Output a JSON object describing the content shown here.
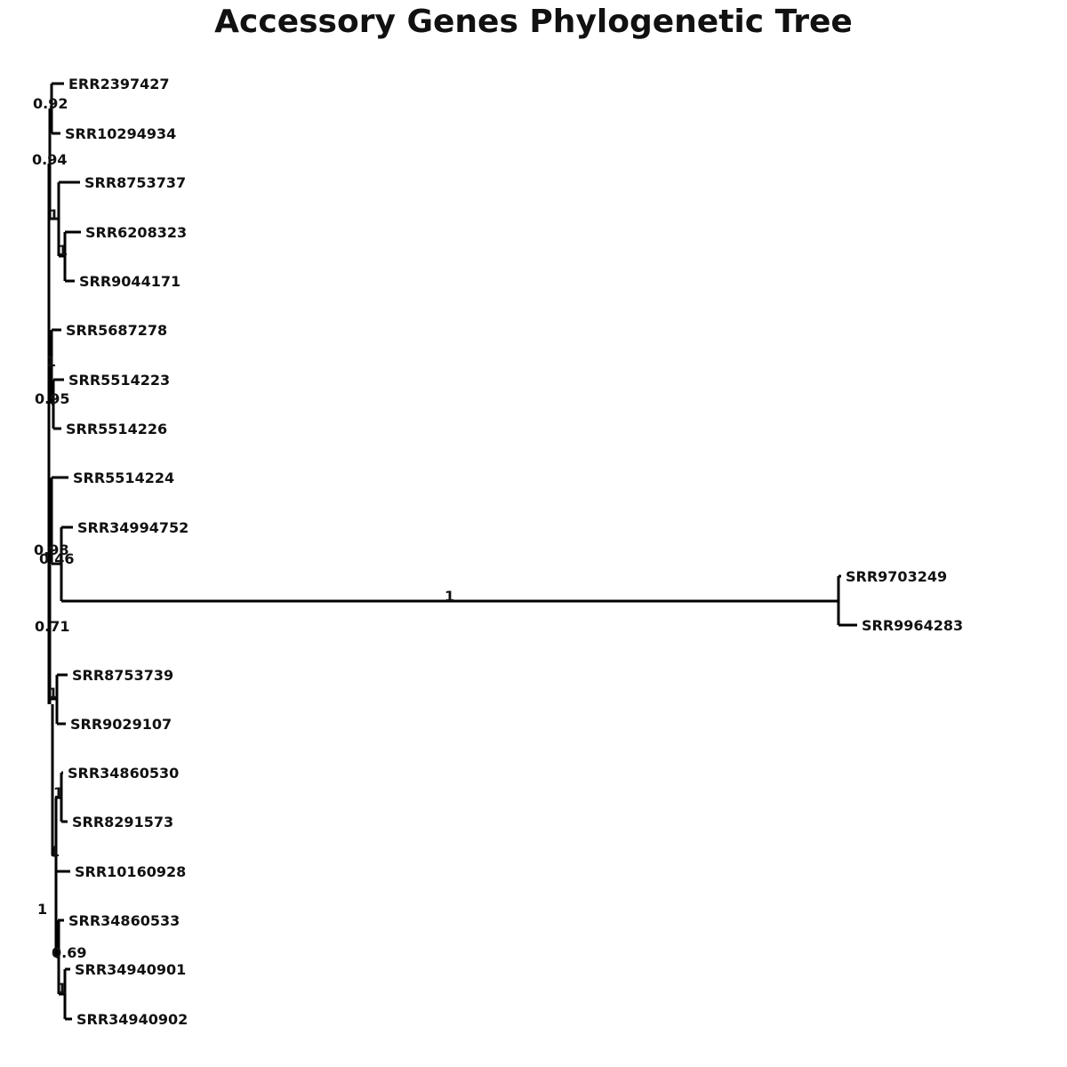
{
  "title": "Accessory Genes Phylogenetic Tree",
  "taxa": [
    "ERR2397427",
    "SRR10294934",
    "SRR8753737",
    "SRR6208323",
    "SRR9044171",
    "SRR5687278",
    "SRR5514223",
    "SRR5514226",
    "SRR5514224",
    "SRR34994752",
    "SRR9703249",
    "SRR9964283",
    "SRR8753739",
    "SRR9029107",
    "SRR34860530",
    "SRR8291573",
    "SRR10160928",
    "SRR34860533",
    "SRR34940901",
    "SRR34940902"
  ],
  "supports": [
    "0.92",
    "0.94",
    "1",
    "1",
    "1",
    "0.95",
    "0.98",
    "0.46",
    "1",
    "0.71",
    "1",
    "1",
    "1",
    "0.69",
    "1",
    "1"
  ]
}
